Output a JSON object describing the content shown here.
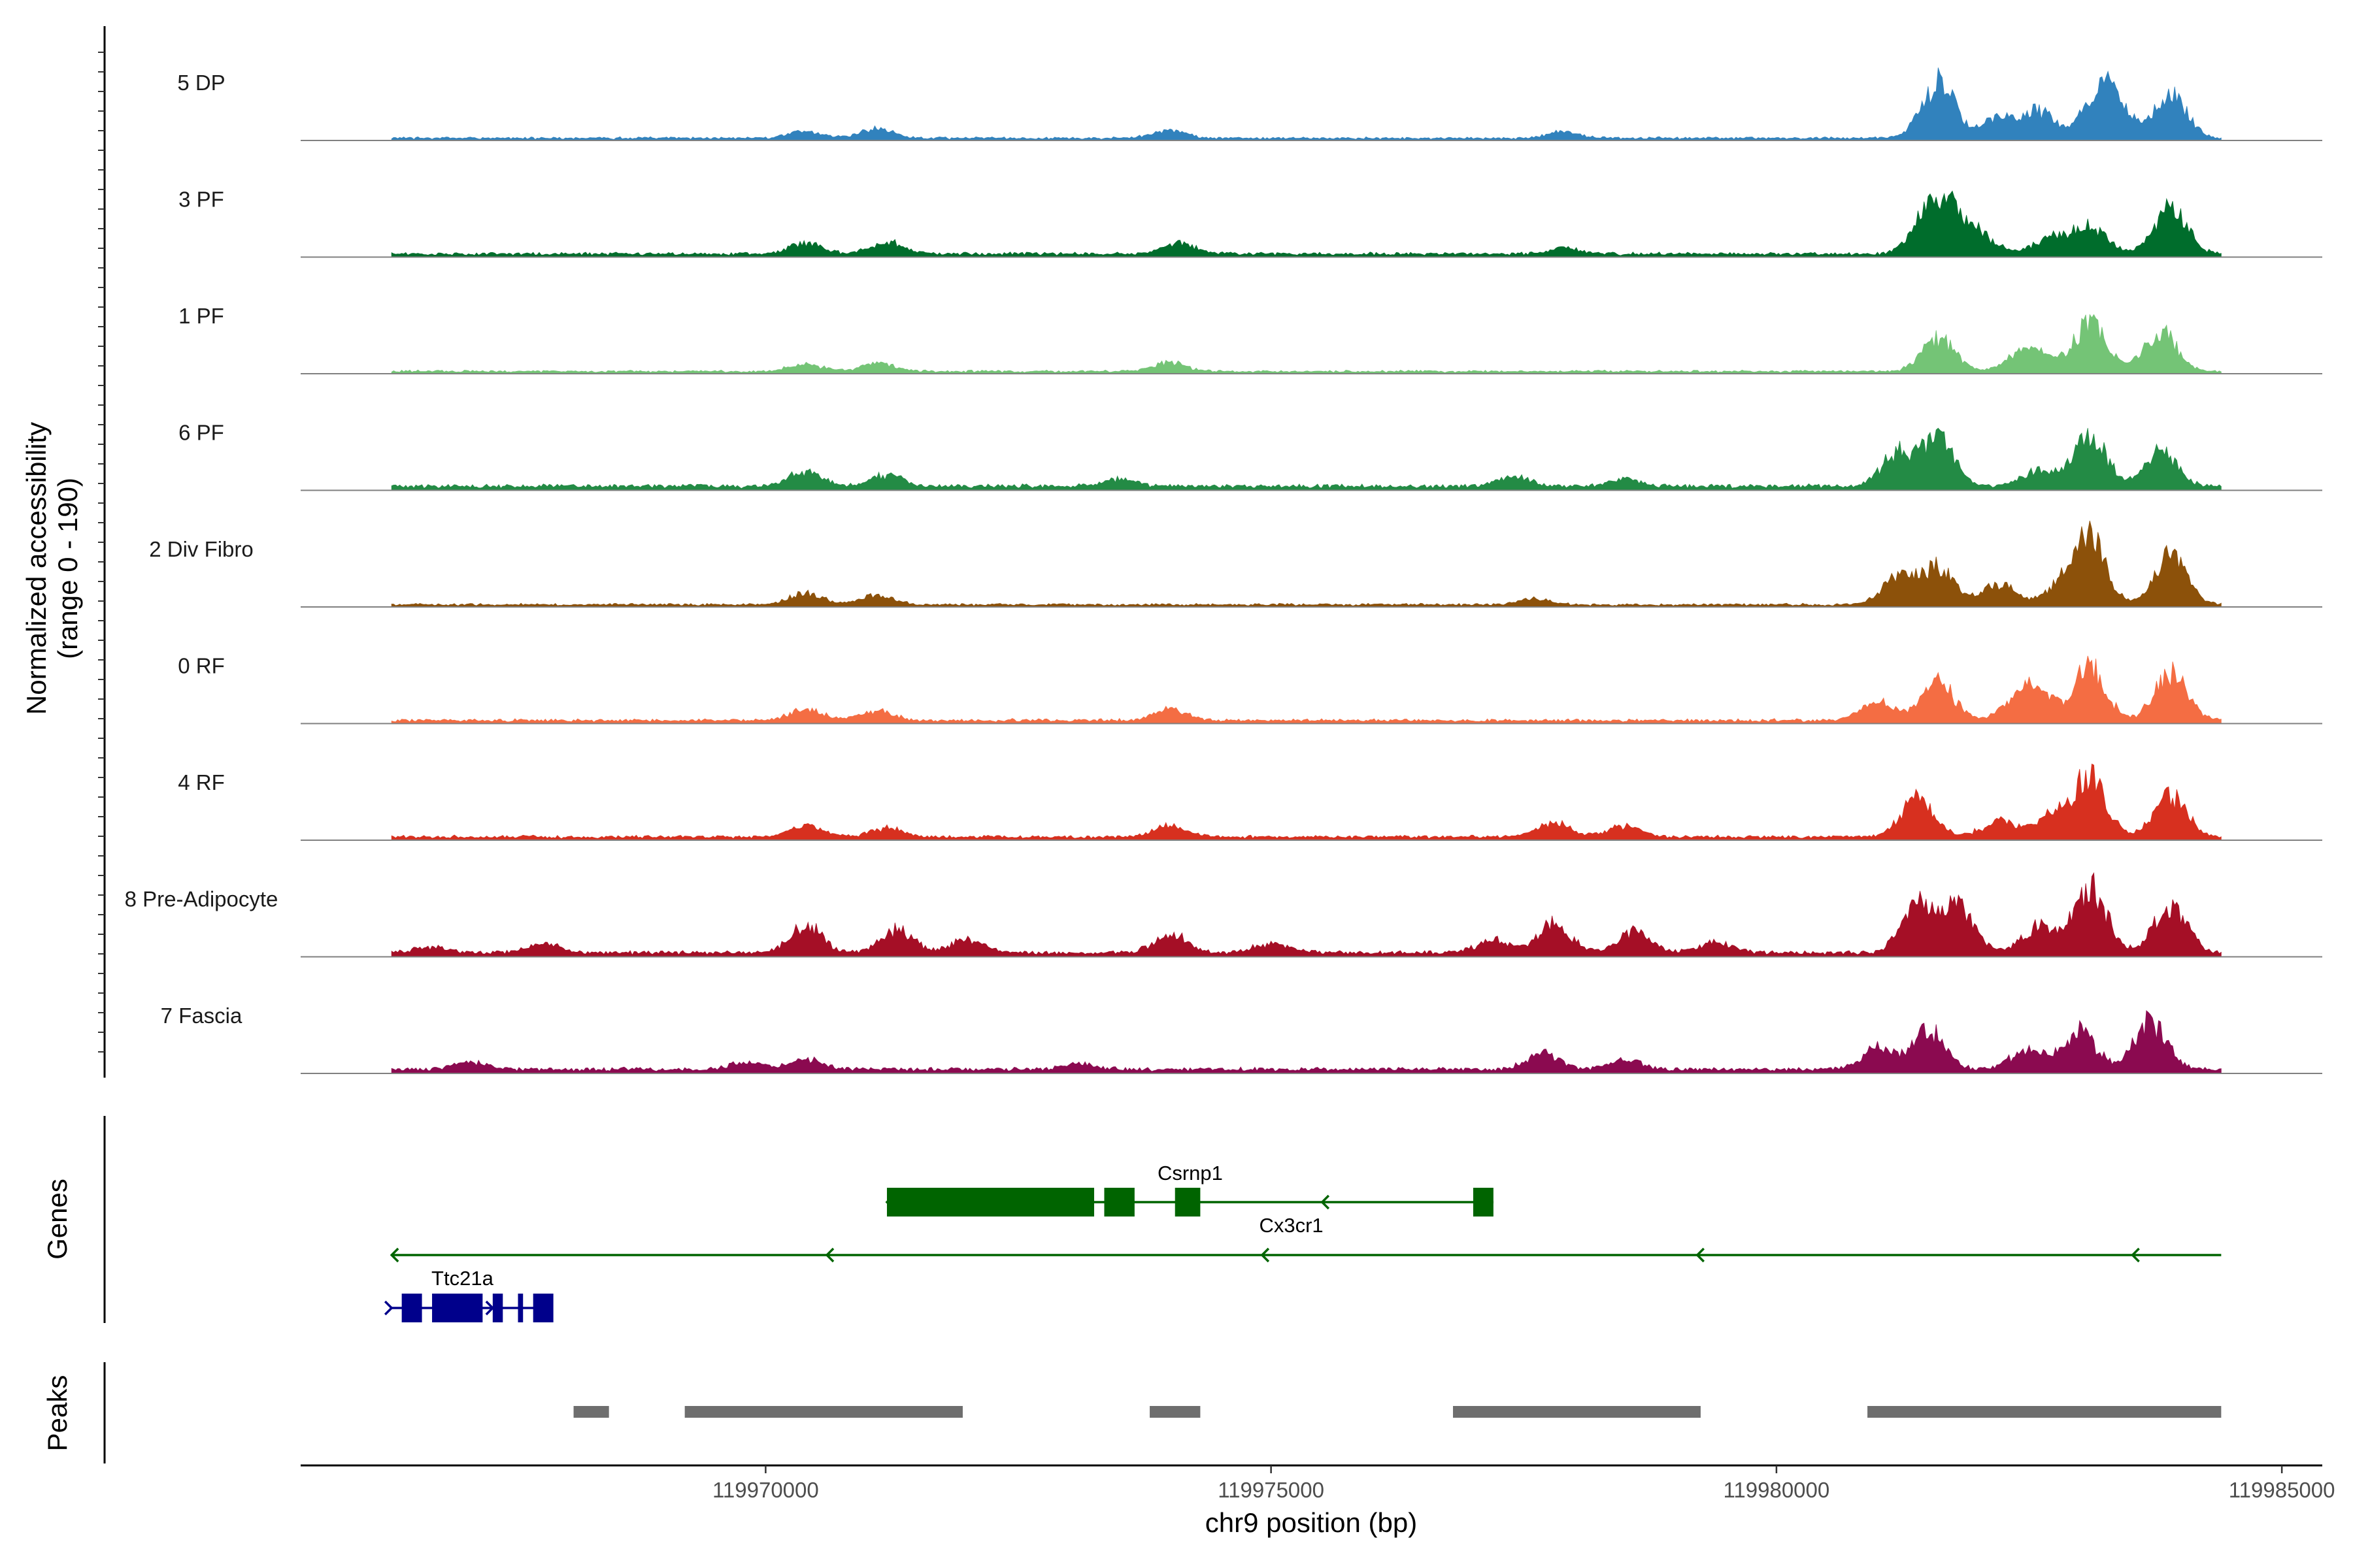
{
  "chart_data": {
    "type": "area",
    "figure": "coverage-plot",
    "xlabel": "chr9 position (bp)",
    "ylabel_line1": "Normalized accessibility",
    "ylabel_line2": "(range 0 - 190)",
    "y_range": [
      0,
      190
    ],
    "x_range": [
      119965400,
      119985400
    ],
    "x_ticks": [
      {
        "value": 119970000,
        "label": "119970000"
      },
      {
        "value": 119975000,
        "label": "119975000"
      },
      {
        "value": 119980000,
        "label": "119980000"
      },
      {
        "value": 119985000,
        "label": "119985000"
      }
    ],
    "signal_range": [
      119966300,
      119984400
    ],
    "tracks": [
      {
        "name": "5 DP",
        "color": "#3182bd",
        "base": 2,
        "peaks": [
          [
            119970400,
            8
          ],
          [
            119971100,
            10
          ],
          [
            119974000,
            8
          ],
          [
            119977900,
            7
          ],
          [
            119981600,
            60
          ],
          [
            119982200,
            22
          ],
          [
            119982600,
            28
          ],
          [
            119983200,
            50
          ],
          [
            119983400,
            22
          ],
          [
            119983900,
            45
          ]
        ]
      },
      {
        "name": "3 PF",
        "color": "#006d2c",
        "base": 3,
        "peaks": [
          [
            119970400,
            12
          ],
          [
            119971200,
            13
          ],
          [
            119974100,
            11
          ],
          [
            119977900,
            6
          ],
          [
            119981500,
            40
          ],
          [
            119981700,
            38
          ],
          [
            119982000,
            20
          ],
          [
            119982700,
            18
          ],
          [
            119983100,
            30
          ],
          [
            119983900,
            48
          ]
        ]
      },
      {
        "name": "1 PF",
        "color": "#74c476",
        "base": 2,
        "peaks": [
          [
            119970400,
            8
          ],
          [
            119971100,
            9
          ],
          [
            119974000,
            10
          ],
          [
            119981600,
            35
          ],
          [
            119982400,
            14
          ],
          [
            119982600,
            16
          ],
          [
            119983100,
            50
          ],
          [
            119983800,
            42
          ]
        ]
      },
      {
        "name": "6 PF",
        "color": "#238b45",
        "base": 4,
        "peaks": [
          [
            119970400,
            16
          ],
          [
            119971200,
            12
          ],
          [
            119973500,
            8
          ],
          [
            119977400,
            10
          ],
          [
            119978500,
            8
          ],
          [
            119981200,
            36
          ],
          [
            119981600,
            48
          ],
          [
            119982600,
            18
          ],
          [
            119983100,
            55
          ],
          [
            119983800,
            38
          ]
        ]
      },
      {
        "name": "2 Div Fibro",
        "color": "#8c510a",
        "base": 2,
        "peaks": [
          [
            119970400,
            12
          ],
          [
            119971100,
            10
          ],
          [
            119977600,
            6
          ],
          [
            119981200,
            28
          ],
          [
            119981600,
            40
          ],
          [
            119982200,
            22
          ],
          [
            119982800,
            18
          ],
          [
            119983100,
            70
          ],
          [
            119983900,
            52
          ]
        ]
      },
      {
        "name": "0 RF",
        "color": "#f46d43",
        "base": 3,
        "peaks": [
          [
            119970400,
            12
          ],
          [
            119971100,
            10
          ],
          [
            119974000,
            12
          ],
          [
            119981000,
            20
          ],
          [
            119981600,
            40
          ],
          [
            119982400,
            22
          ],
          [
            119982600,
            25
          ],
          [
            119983100,
            55
          ],
          [
            119983900,
            50
          ]
        ]
      },
      {
        "name": "4 RF",
        "color": "#d7301f",
        "base": 3,
        "peaks": [
          [
            119970400,
            12
          ],
          [
            119971200,
            10
          ],
          [
            119974000,
            12
          ],
          [
            119977800,
            15
          ],
          [
            119978500,
            12
          ],
          [
            119981400,
            42
          ],
          [
            119982200,
            18
          ],
          [
            119982700,
            22
          ],
          [
            119983100,
            68
          ],
          [
            119983900,
            45
          ]
        ]
      },
      {
        "name": "8 Pre-Adipocyte",
        "color": "#a50f26",
        "base": 4,
        "peaks": [
          [
            119966700,
            6
          ],
          [
            119967800,
            10
          ],
          [
            119970400,
            30
          ],
          [
            119971300,
            25
          ],
          [
            119972000,
            14
          ],
          [
            119974000,
            20
          ],
          [
            119975000,
            10
          ],
          [
            119977200,
            14
          ],
          [
            119977800,
            32
          ],
          [
            119978600,
            22
          ],
          [
            119979400,
            12
          ],
          [
            119981400,
            55
          ],
          [
            119981800,
            48
          ],
          [
            119982600,
            28
          ],
          [
            119983100,
            70
          ],
          [
            119983900,
            50
          ]
        ]
      },
      {
        "name": "7 Fascia",
        "color": "#8b0a50",
        "base": 4,
        "peaks": [
          [
            119967100,
            8
          ],
          [
            119969800,
            8
          ],
          [
            119970400,
            10
          ],
          [
            119973100,
            6
          ],
          [
            119977700,
            18
          ],
          [
            119978500,
            10
          ],
          [
            119981000,
            22
          ],
          [
            119981500,
            42
          ],
          [
            119982500,
            24
          ],
          [
            119983000,
            40
          ],
          [
            119983700,
            50
          ]
        ]
      }
    ],
    "genes": [
      {
        "name": "Csrnp1",
        "color": "#006400",
        "strand": "-",
        "start": 119971200,
        "end": 119977200,
        "row": 0,
        "exons": [
          [
            119971200,
            119973250
          ],
          [
            119973350,
            119973650
          ],
          [
            119974050,
            119974300
          ],
          [
            119977000,
            119977200
          ]
        ]
      },
      {
        "name": "Cx3cr1",
        "color": "#006400",
        "strand": "-",
        "start": 119966300,
        "end": 119984400,
        "row": 1,
        "exons": []
      },
      {
        "name": "Ttc21a",
        "color": "#00008b",
        "strand": "+",
        "start": 119966300,
        "end": 119967800,
        "row": 2,
        "exons": [
          [
            119966400,
            119966600
          ],
          [
            119966700,
            119967200
          ],
          [
            119967300,
            119967400
          ],
          [
            119967550,
            119967600
          ],
          [
            119967700,
            119967900
          ]
        ]
      }
    ],
    "peaks": [
      [
        119968100,
        119968450
      ],
      [
        119969200,
        119971950
      ],
      [
        119973800,
        119974300
      ],
      [
        119976800,
        119979250
      ],
      [
        119980900,
        119984400
      ]
    ],
    "panel_titles": {
      "genes": "Genes",
      "peaks": "Peaks"
    }
  }
}
